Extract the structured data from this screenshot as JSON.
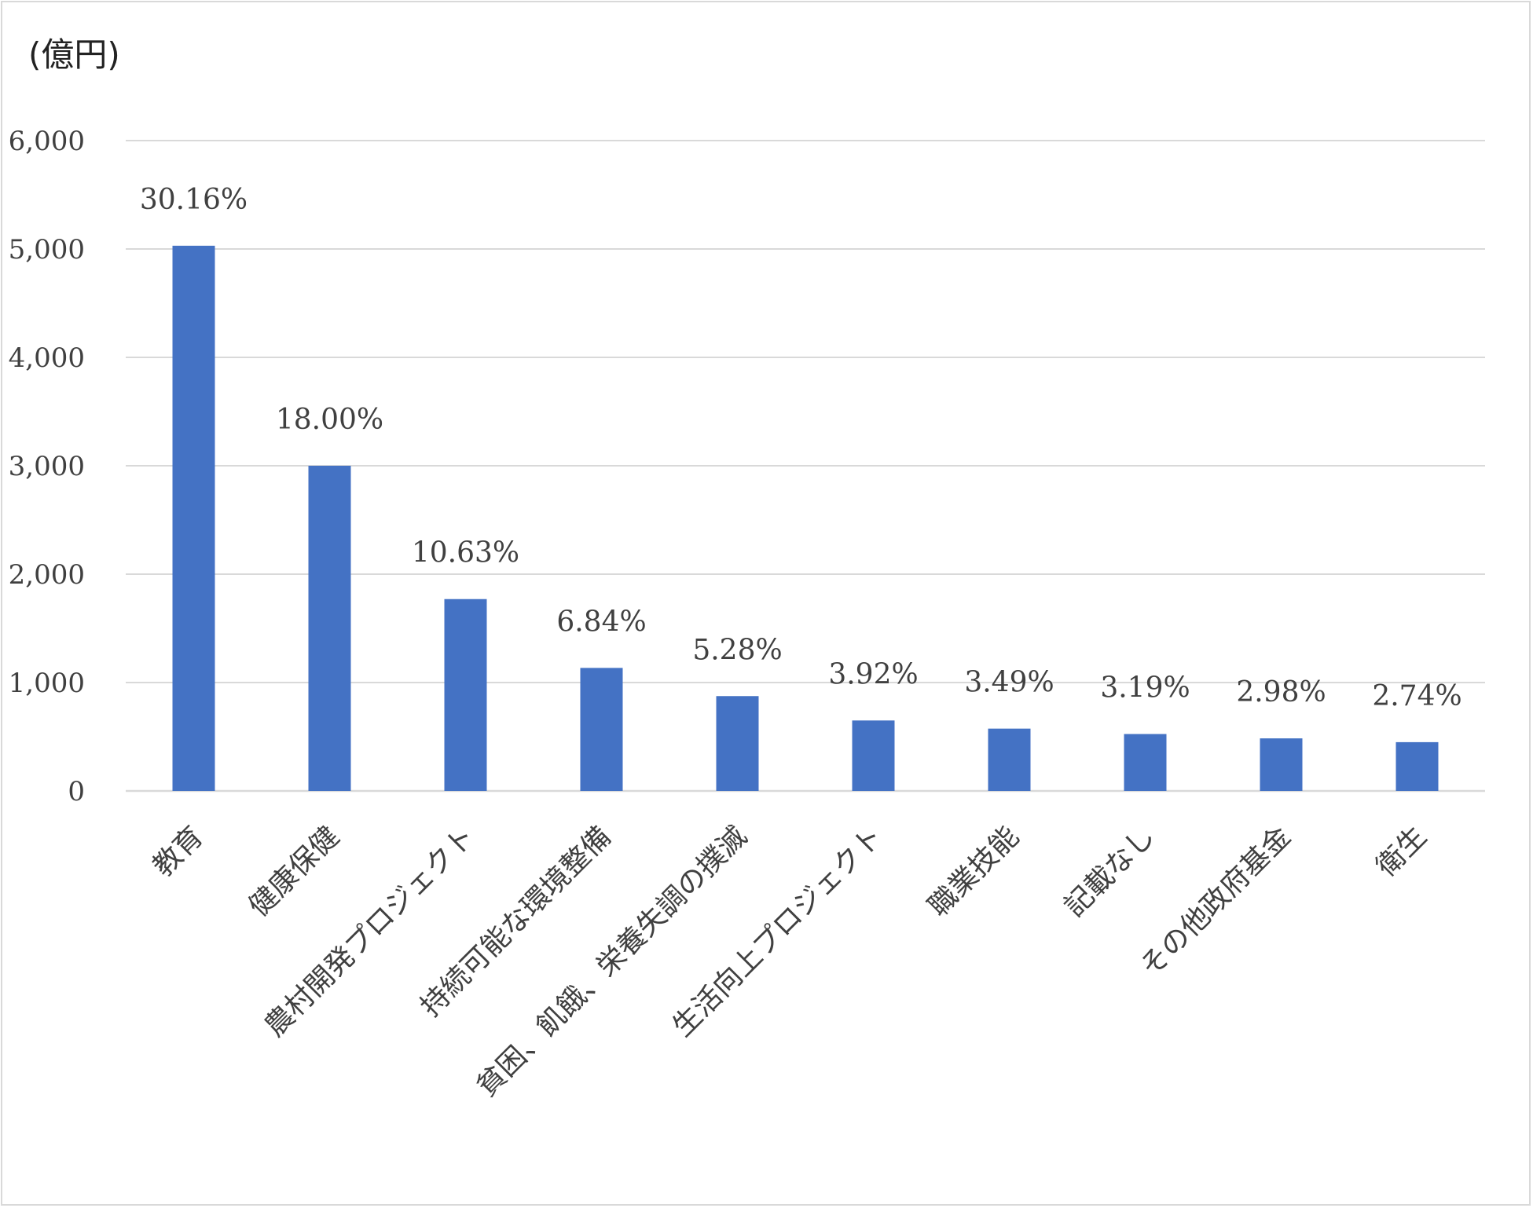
{
  "chart_data": {
    "type": "bar",
    "unit_label": "(億円)",
    "categories": [
      "教育",
      "健康保健",
      "農村開発プロジェクト",
      "持続可能な環境整備",
      "貧困、飢餓、栄養失調の撲滅",
      "生活向上プロジェクト",
      "職業技能",
      "記載なし",
      "その他政府基金",
      "衛生"
    ],
    "values": [
      5030,
      3000,
      1770,
      1135,
      875,
      650,
      575,
      525,
      485,
      450
    ],
    "data_labels": [
      "30.16%",
      "18.00%",
      "10.63%",
      "6.84%",
      "5.28%",
      "3.92%",
      "3.49%",
      "3.19%",
      "2.98%",
      "2.74%"
    ],
    "y_ticks": [
      0,
      1000,
      2000,
      3000,
      4000,
      5000,
      6000
    ],
    "y_tick_labels": [
      "0",
      "1,000",
      "2,000",
      "3,000",
      "4,000",
      "5,000",
      "6,000"
    ],
    "ylim": [
      0,
      6000
    ],
    "grid": true,
    "legend": false,
    "colors": {
      "bar": "#4472c4",
      "grid": "#d9d9d9",
      "text": "#404040"
    }
  }
}
